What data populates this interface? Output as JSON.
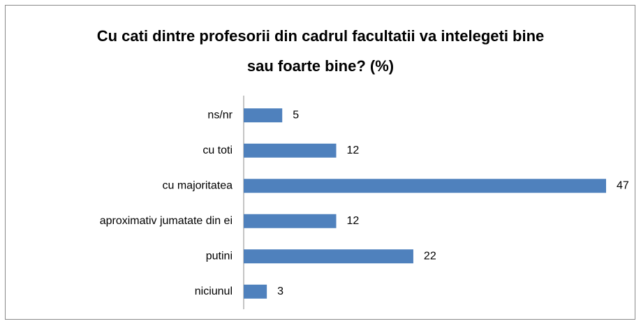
{
  "chart_data": {
    "type": "bar",
    "orientation": "horizontal",
    "title": "Cu cati dintre profesorii din cadrul facultatii va intelegeti bine sau foarte bine? (%)",
    "categories": [
      "ns/nr",
      "cu toti",
      "cu majoritatea",
      "aproximativ jumatate din ei",
      "putini",
      "niciunul"
    ],
    "values": [
      5,
      12,
      47,
      12,
      22,
      3
    ],
    "color": "#4f81bd"
  }
}
